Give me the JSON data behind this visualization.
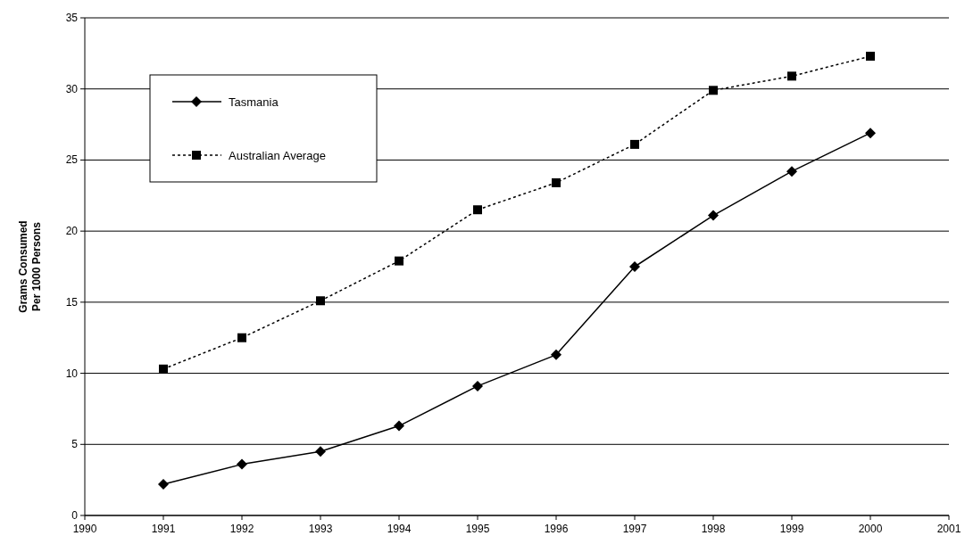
{
  "chart_data": {
    "type": "line",
    "ylabel": "Grams Consumed\nPer 1000 Persons",
    "x": [
      1991,
      1992,
      1993,
      1994,
      1995,
      1996,
      1997,
      1998,
      1999,
      2000
    ],
    "series": [
      {
        "name": "Tasmania",
        "color": "#000000",
        "marker": "diamond",
        "line_style": "solid",
        "values": [
          2.2,
          3.6,
          4.5,
          6.3,
          9.1,
          11.3,
          17.5,
          21.1,
          24.2,
          26.9
        ]
      },
      {
        "name": "Australian Average",
        "color": "#000000",
        "marker": "square",
        "line_style": "dotted",
        "values": [
          10.3,
          12.5,
          15.1,
          17.9,
          21.5,
          23.4,
          26.1,
          29.9,
          30.9,
          32.3
        ]
      }
    ],
    "xlim": [
      1990,
      2001
    ],
    "xticks": [
      1990,
      1991,
      1992,
      1993,
      1994,
      1995,
      1996,
      1997,
      1998,
      1999,
      2000,
      2001
    ],
    "ylim": [
      0,
      35
    ],
    "yticks": [
      0,
      5,
      10,
      15,
      20,
      25,
      30,
      35
    ],
    "grid": "y",
    "legend": "top left"
  }
}
